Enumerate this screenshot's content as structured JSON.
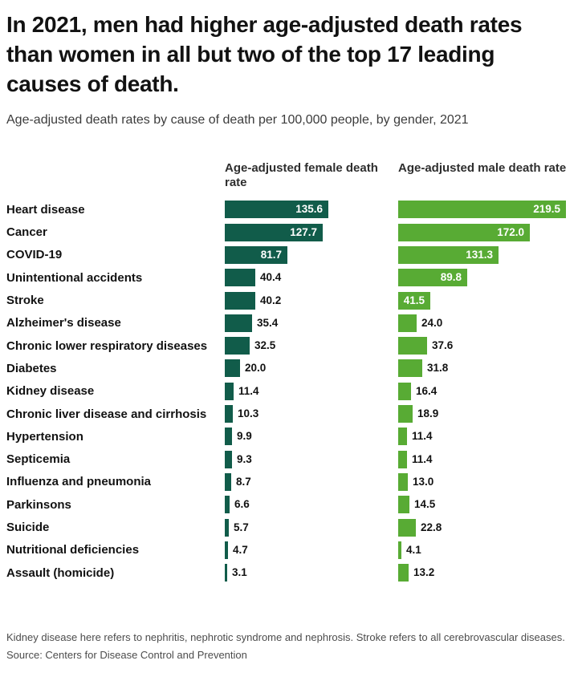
{
  "header": {
    "title": "In 2021, men had higher age-adjusted death rates than women in all but two of the top 17 leading causes of death.",
    "subtitle": "Age-adjusted death rates by cause of death per 100,000 people, by gender, 2021"
  },
  "chart_data": {
    "type": "bar",
    "orientation": "horizontal",
    "title": "Age-adjusted death rates by cause of death per 100,000 people, by gender, 2021",
    "categories": [
      "Heart disease",
      "Cancer",
      "COVID-19",
      "Unintentional accidents",
      "Stroke",
      "Alzheimer's disease",
      "Chronic lower respiratory diseases",
      "Diabetes",
      "Kidney disease",
      "Chronic liver disease and cirrhosis",
      "Hypertension",
      "Septicemia",
      "Influenza and pneumonia",
      "Parkinsons",
      "Suicide",
      "Nutritional deficiencies",
      "Assault (homicide)"
    ],
    "series": [
      {
        "name": "Age-adjusted female death rate",
        "color": "#115C4A",
        "values": [
          135.6,
          127.7,
          81.7,
          40.4,
          40.2,
          35.4,
          32.5,
          20.0,
          11.4,
          10.3,
          9.9,
          9.3,
          8.7,
          6.6,
          5.7,
          4.7,
          3.1
        ]
      },
      {
        "name": "Age-adjusted male death rate",
        "color": "#58AB34",
        "values": [
          219.5,
          172.0,
          131.3,
          89.8,
          41.5,
          24.0,
          37.6,
          31.8,
          16.4,
          18.9,
          11.4,
          11.4,
          13.0,
          14.5,
          22.8,
          4.1,
          13.2
        ]
      }
    ],
    "xmax": 219.5,
    "grid": false,
    "legend_position": "column-headers",
    "value_labels": "one-decimal, white inside bar when bar is wide enough, black outside otherwise"
  },
  "colors": {
    "background": "#ffffff",
    "female_bar": "#115C4A",
    "male_bar": "#58AB34",
    "value_inside": "#ffffff",
    "value_outside": "#121212"
  },
  "footer": {
    "note": "Kidney disease here refers to nephritis, nephrotic syndrome and nephrosis. Stroke refers to all cerebrovascular diseases.",
    "source": "Source: Centers for Disease Control and Prevention"
  }
}
